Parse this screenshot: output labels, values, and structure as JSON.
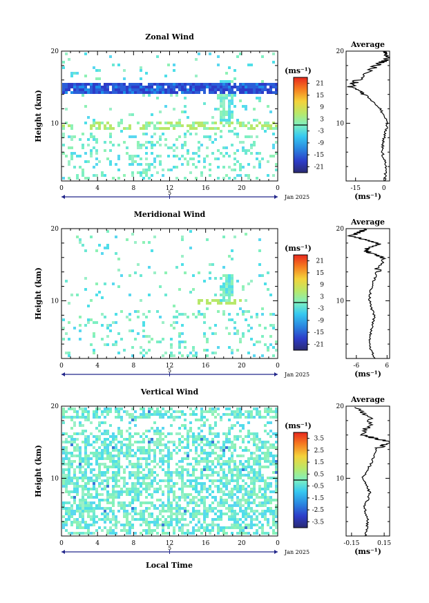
{
  "panels": [
    {
      "title": "Zonal Wind",
      "ylabel": "Height (km)",
      "yticks": [
        "20",
        "10"
      ],
      "xticks": [
        "0",
        "4",
        "8",
        "12",
        "16",
        "20",
        "0"
      ],
      "date_tick": "5",
      "date_label": "Jan 2025",
      "unit": "(ms⁻¹)",
      "colorbar_ticks": [
        "21",
        "15",
        "9",
        "3",
        "-3",
        "-9",
        "-15",
        "-21"
      ],
      "avg_title": "Average",
      "avg_xticks": [
        "-15",
        "0"
      ],
      "avg_xlabel": "(ms⁻¹)",
      "avg_yticks": [
        "20",
        "10"
      ]
    },
    {
      "title": "Meridional Wind",
      "ylabel": "Height (km)",
      "yticks": [
        "20",
        "10"
      ],
      "xticks": [
        "0",
        "4",
        "8",
        "12",
        "16",
        "20",
        "0"
      ],
      "date_tick": "5",
      "date_label": "Jan 2025",
      "unit": "(ms⁻¹)",
      "colorbar_ticks": [
        "21",
        "15",
        "9",
        "3",
        "-3",
        "-9",
        "-15",
        "-21"
      ],
      "avg_title": "Average",
      "avg_xticks": [
        "-6",
        "6"
      ],
      "avg_xlabel": "(ms⁻¹)",
      "avg_yticks": [
        "20",
        "10"
      ]
    },
    {
      "title": "Vertical Wind",
      "ylabel": "Height (km)",
      "yticks": [
        "20",
        "10"
      ],
      "xticks": [
        "0",
        "4",
        "8",
        "12",
        "16",
        "20",
        "0"
      ],
      "date_tick": "5",
      "date_label": "Jan 2025",
      "unit": "(ms⁻¹)",
      "colorbar_ticks": [
        "3.5",
        "2.5",
        "1.5",
        "0.5",
        "-0.5",
        "-1.5",
        "-2.5",
        "-3.5"
      ],
      "avg_title": "Average",
      "avg_xticks": [
        "-0.15",
        "0.15"
      ],
      "avg_xlabel": "(ms⁻¹)",
      "avg_yticks": [
        "20",
        "10"
      ]
    }
  ],
  "xlabel": "Local Time",
  "chart_data": [
    {
      "type": "heatmap",
      "title": "Zonal Wind",
      "ylabel": "Height (km)",
      "xlim_hours": [
        0,
        24
      ],
      "ylim_km": [
        2,
        20
      ],
      "clim": [
        -24,
        24
      ],
      "features": [
        {
          "x_range": [
            0,
            23.5
          ],
          "y_range": [
            14.5,
            15.5
          ],
          "value": -22
        },
        {
          "x_range": [
            0,
            23.5
          ],
          "y_range": [
            9.5,
            10.5
          ],
          "value": 5
        },
        {
          "x_range": [
            17.5,
            19
          ],
          "y_range": [
            9,
            16
          ],
          "value": 1
        }
      ]
    },
    {
      "type": "line",
      "title": "Average",
      "series": [
        {
          "height_km": [
            2,
            4,
            6,
            8,
            10,
            12,
            14,
            15,
            16,
            18,
            19,
            20
          ],
          "value": [
            0.5,
            1,
            -1,
            0,
            2,
            -2,
            -10,
            -18,
            -14,
            -4,
            2,
            0
          ]
        }
      ],
      "xlim": [
        -20,
        3
      ]
    },
    {
      "type": "heatmap",
      "title": "Meridional Wind",
      "ylabel": "Height (km)",
      "xlim_hours": [
        0,
        24
      ],
      "ylim_km": [
        2,
        20
      ],
      "clim": [
        -24,
        24
      ],
      "features": [
        {
          "x_range": [
            15,
            19.5
          ],
          "y_range": [
            9.5,
            10.5
          ],
          "value": 5
        },
        {
          "x_range": [
            17.5,
            18.5
          ],
          "y_range": [
            10,
            14
          ],
          "value": 1
        }
      ]
    },
    {
      "type": "line",
      "title": "Average",
      "series": [
        {
          "height_km": [
            2,
            4,
            6,
            8,
            10,
            12,
            14,
            16,
            17,
            18,
            19,
            20
          ],
          "value": [
            1,
            -1,
            0,
            1,
            -1,
            0,
            2,
            4,
            -3,
            3,
            -8,
            -2
          ]
        }
      ],
      "xlim": [
        -10,
        7
      ]
    },
    {
      "type": "heatmap",
      "title": "Vertical Wind",
      "ylabel": "Height (km)",
      "xlim_hours": [
        0,
        24
      ],
      "ylim_km": [
        2,
        20
      ],
      "clim": [
        -4,
        4
      ],
      "features": [
        {
          "x_range": [
            0,
            24
          ],
          "y_range": [
            2,
            20
          ],
          "value": -0.2
        }
      ]
    },
    {
      "type": "line",
      "title": "Average",
      "series": [
        {
          "height_km": [
            2,
            4,
            6,
            8,
            10,
            12,
            14,
            15,
            16,
            18,
            20
          ],
          "value": [
            -0.02,
            0,
            -0.03,
            0.02,
            -0.05,
            0.03,
            0.08,
            0.2,
            -0.05,
            0.03,
            -0.1
          ]
        }
      ],
      "xlim": [
        -0.2,
        0.2
      ]
    }
  ]
}
